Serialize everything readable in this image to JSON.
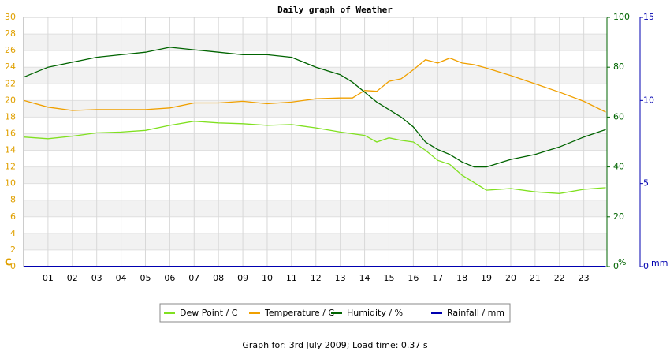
{
  "chart_data": {
    "type": "line",
    "title": "Daily graph of Weather",
    "footer": "Graph for: 3rd July 2009; Load time: 0.37 s",
    "ylabel": "C",
    "y2label": "%",
    "y3label": "mm",
    "x": [
      0,
      1,
      2,
      3,
      4,
      5,
      6,
      7,
      8,
      9,
      10,
      11,
      12,
      13,
      13.5,
      14,
      14.5,
      15,
      15.5,
      16,
      16.5,
      17,
      17.5,
      18,
      18.5,
      19,
      20,
      21,
      22,
      23,
      23.9
    ],
    "xlim": [
      0,
      23.95
    ],
    "xticks": [
      {
        "value": 1,
        "label": "01"
      },
      {
        "value": 2,
        "label": "02"
      },
      {
        "value": 3,
        "label": "03"
      },
      {
        "value": 4,
        "label": "04"
      },
      {
        "value": 5,
        "label": "05"
      },
      {
        "value": 6,
        "label": "06"
      },
      {
        "value": 7,
        "label": "07"
      },
      {
        "value": 8,
        "label": "08"
      },
      {
        "value": 9,
        "label": "09"
      },
      10,
      11,
      12,
      13,
      14,
      15,
      16,
      17,
      18,
      19,
      20,
      21,
      22,
      23
    ],
    "ylim": [
      0,
      30
    ],
    "yticks": [
      0,
      2,
      4,
      6,
      8,
      10,
      12,
      14,
      16,
      18,
      20,
      22,
      24,
      26,
      28,
      30
    ],
    "y2lim": [
      0,
      100
    ],
    "y2ticks": [
      0,
      20,
      40,
      60,
      80,
      100
    ],
    "y3lim": [
      0,
      15
    ],
    "y3ticks": [
      0,
      5,
      10,
      15
    ],
    "grid": true,
    "legend": "bottom",
    "series": [
      {
        "name": "Dew Point / C",
        "color": "#80e020",
        "values": [
          15.6,
          15.4,
          15.7,
          16.1,
          16.2,
          16.4,
          17.0,
          17.5,
          17.3,
          17.2,
          17.0,
          17.1,
          16.7,
          16.2,
          16.0,
          15.8,
          15.0,
          15.5,
          15.2,
          15.0,
          14.0,
          12.8,
          12.3,
          11.0,
          10.1,
          9.2,
          9.4,
          9.0,
          8.8,
          9.3,
          9.5
        ]
      },
      {
        "name": "Temperature / C",
        "color": "#f0a000",
        "values": [
          20.0,
          19.2,
          18.8,
          18.9,
          18.9,
          18.9,
          19.1,
          19.7,
          19.7,
          19.9,
          19.6,
          19.8,
          20.2,
          20.3,
          20.3,
          21.2,
          21.1,
          22.3,
          22.6,
          23.7,
          24.9,
          24.5,
          25.1,
          24.5,
          24.3,
          23.9,
          23.0,
          22.0,
          21.0,
          19.9,
          18.6
        ]
      },
      {
        "name": "Humidity / %",
        "color": "#006400",
        "axis": "y2",
        "values": [
          76,
          80,
          82,
          84,
          85,
          86,
          88,
          87,
          86,
          85,
          85,
          84,
          80,
          77,
          74,
          70,
          66,
          63,
          60,
          56,
          50,
          47,
          45,
          42,
          40,
          40,
          43,
          45,
          48,
          52,
          55
        ]
      },
      {
        "name": "Rainfall / mm",
        "color": "#0000b0",
        "axis": "y3",
        "values": [
          0,
          0,
          0,
          0,
          0,
          0,
          0,
          0,
          0,
          0,
          0,
          0,
          0,
          0,
          0,
          0,
          0,
          0,
          0,
          0,
          0,
          0,
          0,
          0,
          0,
          0,
          0,
          0,
          0,
          0,
          0
        ]
      }
    ]
  }
}
